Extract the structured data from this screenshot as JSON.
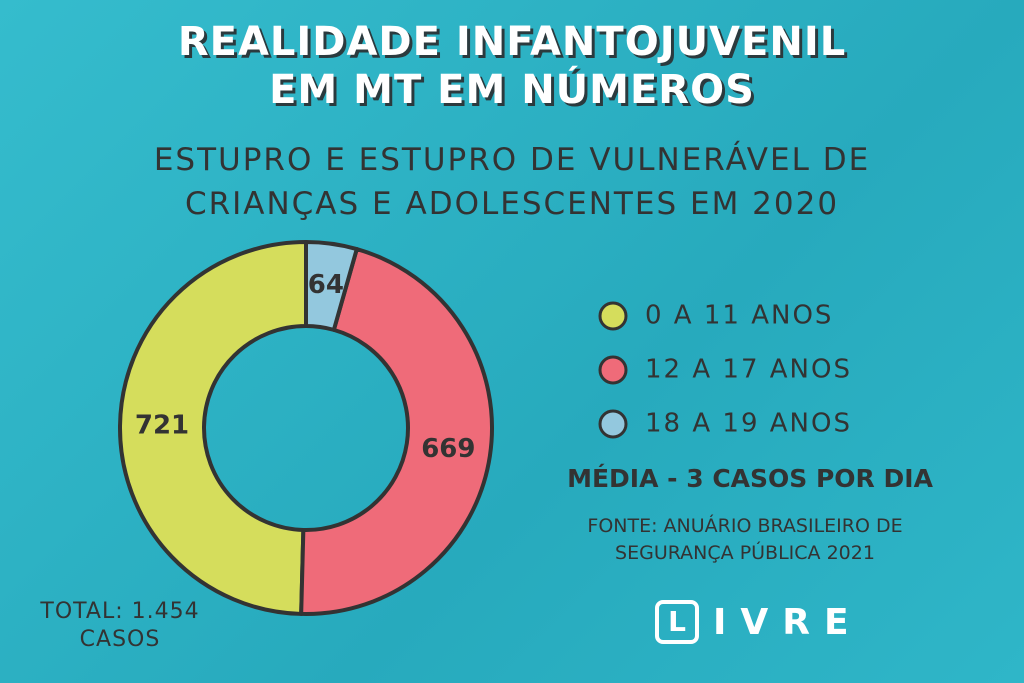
{
  "chart_data": {
    "type": "donut",
    "title": "REALIDADE INFANTOJUVENIL EM MT EM NÚMEROS",
    "subtitle": "ESTUPRO E ESTUPRO DE VULNERÁVEL DE CRIANÇAS E ADOLESCENTES EM 2020",
    "categories": [
      "0 A 11 ANOS",
      "12 A 17 ANOS",
      "18 A 19 ANOS"
    ],
    "values": [
      721,
      669,
      64
    ],
    "colors": [
      "#d5dd5c",
      "#ef6b79",
      "#93c8de"
    ],
    "total_label": "TOTAL: 1.454 CASOS",
    "annotation": "MÉDIA - 3 CASOS POR DIA",
    "source": "FONTE: ANUÁRIO BRASILEIRO DE SEGURANÇA PÚBLICA 2021",
    "brand_mark": "L",
    "brand_text": "IVRE"
  }
}
